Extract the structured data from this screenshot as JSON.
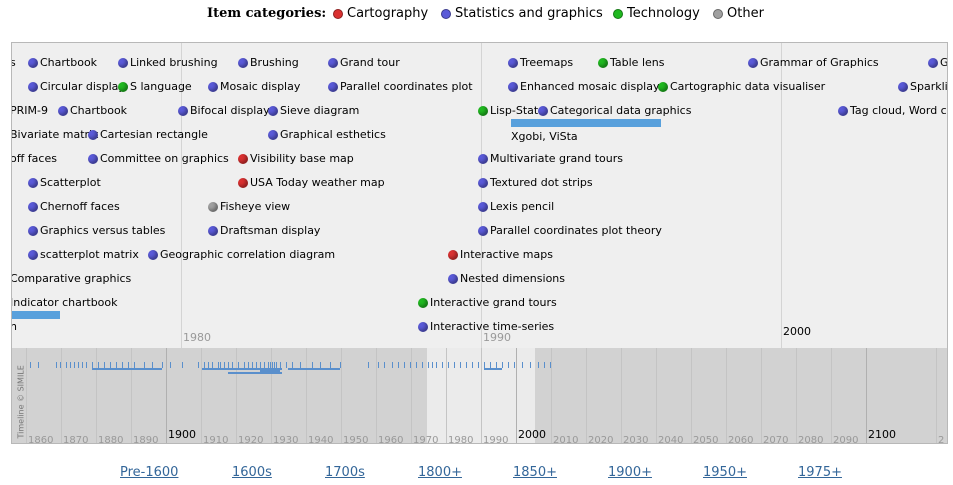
{
  "legend": {
    "title": "Item categories:",
    "items": [
      {
        "label": "Cartography",
        "color": "#d93030"
      },
      {
        "label": "Statistics and graphics",
        "color": "#5a5ad8"
      },
      {
        "label": "Technology",
        "color": "#20b820"
      },
      {
        "label": "Other",
        "color": "#a0a0a0"
      }
    ]
  },
  "category_colors": {
    "carto": "#d93030",
    "stats": "#5a5ad8",
    "tech": "#20b820",
    "other": "#a0a0a0",
    "duration": "#58a0dc"
  },
  "main_band": {
    "major_labels": [
      "1980",
      "1990",
      "2000"
    ],
    "events": [
      {
        "label": "s",
        "cat": "none"
      },
      {
        "label": "Chartbook",
        "cat": "stats"
      },
      {
        "label": "Linked brushing",
        "cat": "stats"
      },
      {
        "label": "Brushing",
        "cat": "stats"
      },
      {
        "label": "Grand tour",
        "cat": "stats"
      },
      {
        "label": "Treemaps",
        "cat": "stats"
      },
      {
        "label": "Table lens",
        "cat": "tech"
      },
      {
        "label": "Grammar of Graphics",
        "cat": "stats"
      },
      {
        "label": "G",
        "cat": "stats"
      },
      {
        "label": "Circular display",
        "cat": "stats"
      },
      {
        "label": "S language",
        "cat": "tech"
      },
      {
        "label": "Mosaic display",
        "cat": "stats"
      },
      {
        "label": "Parallel coordinates plot",
        "cat": "stats"
      },
      {
        "label": "Enhanced mosaic display",
        "cat": "stats"
      },
      {
        "label": "Cartographic data visualiser",
        "cat": "tech"
      },
      {
        "label": "Sparklin",
        "cat": "stats"
      },
      {
        "label": "PRIM-9",
        "cat": "none"
      },
      {
        "label": "Chartbook",
        "cat": "stats"
      },
      {
        "label": "Bifocal display",
        "cat": "stats"
      },
      {
        "label": "Sieve diagram",
        "cat": "stats"
      },
      {
        "label": "Lisp-Stat",
        "cat": "tech"
      },
      {
        "label": "Categorical data graphics",
        "cat": "stats"
      },
      {
        "label": "Tag cloud, Word clou",
        "cat": "stats"
      },
      {
        "label": "Bivariate matrix",
        "cat": "none"
      },
      {
        "label": "Cartesian rectangle",
        "cat": "stats"
      },
      {
        "label": "Graphical esthetics",
        "cat": "stats"
      },
      {
        "label": "Xgobi, ViSta",
        "cat": "none"
      },
      {
        "label": "off faces",
        "cat": "none"
      },
      {
        "label": "Committee on graphics",
        "cat": "stats"
      },
      {
        "label": "Visibility base map",
        "cat": "carto"
      },
      {
        "label": "Multivariate grand tours",
        "cat": "stats"
      },
      {
        "label": "Scatterplot",
        "cat": "stats"
      },
      {
        "label": "USA Today weather map",
        "cat": "carto"
      },
      {
        "label": "Textured dot strips",
        "cat": "stats"
      },
      {
        "label": "Chernoff faces",
        "cat": "stats"
      },
      {
        "label": "Fisheye view",
        "cat": "other"
      },
      {
        "label": "Lexis pencil",
        "cat": "stats"
      },
      {
        "label": "Graphics versus tables",
        "cat": "stats"
      },
      {
        "label": "Draftsman display",
        "cat": "stats"
      },
      {
        "label": "Parallel coordinates plot theory",
        "cat": "stats"
      },
      {
        "label": "scatterplot matrix",
        "cat": "stats"
      },
      {
        "label": "Geographic correlation diagram",
        "cat": "stats"
      },
      {
        "label": "Interactive maps",
        "cat": "carto"
      },
      {
        "label": "Comparative graphics",
        "cat": "none"
      },
      {
        "label": "Nested dimensions",
        "cat": "stats"
      },
      {
        "label": "Indicator chartbook",
        "cat": "none"
      },
      {
        "label": "Interactive grand tours",
        "cat": "tech"
      },
      {
        "label": "n",
        "cat": "none"
      },
      {
        "label": "Interactive time-series",
        "cat": "stats"
      }
    ]
  },
  "overview_band": {
    "decade_labels": [
      "1860",
      "1870",
      "1880",
      "1890",
      "1910",
      "1920",
      "1930",
      "1940",
      "1950",
      "1960",
      "1970",
      "1980",
      "1990",
      "2010",
      "2020",
      "2030",
      "2040",
      "2050",
      "2060",
      "2070",
      "2080",
      "2090",
      "2"
    ],
    "century_labels": [
      "1900",
      "2000",
      "2100"
    ],
    "credit": "Timeline © SIMILE"
  },
  "nav": {
    "links": [
      "Pre-1600",
      "1600s",
      "1700s",
      "1800+",
      "1850+",
      "1900+",
      "1950+",
      "1975+"
    ]
  }
}
